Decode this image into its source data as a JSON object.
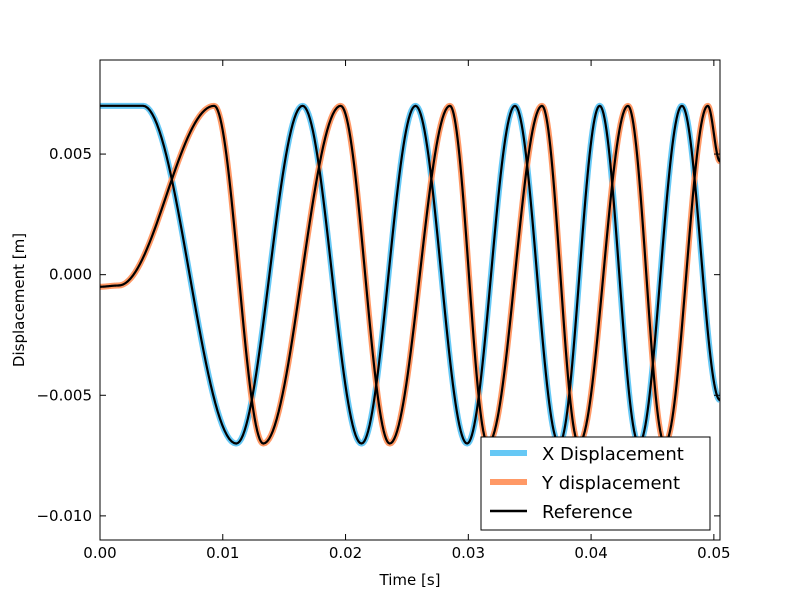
{
  "chart_data": {
    "type": "line",
    "title": "",
    "xlabel": "Time [s]",
    "ylabel": "Displacement [m]",
    "xlim": [
      0.0,
      0.0505
    ],
    "ylim": [
      -0.011,
      0.0089
    ],
    "xticks": [
      0.0,
      0.01,
      0.02,
      0.03,
      0.04,
      0.05
    ],
    "xtick_labels": [
      "0.00",
      "0.01",
      "0.02",
      "0.03",
      "0.04",
      "0.05"
    ],
    "yticks": [
      -0.01,
      -0.005,
      0.0,
      0.005
    ],
    "ytick_labels": [
      "−0.010",
      "−0.005",
      "0.000",
      "0.005"
    ],
    "grid": false,
    "legend_position": "lower-right",
    "colors": {
      "x_displacement": "#66c8f5",
      "y_displacement": "#ff9966",
      "reference": "#000000"
    },
    "series": [
      {
        "name": "X Displacement",
        "amplitude": 0.007,
        "x": [
          0.0,
          0.0035,
          0.0111,
          0.0165,
          0.0213,
          0.0257,
          0.0299,
          0.0338,
          0.0374,
          0.0407,
          0.0439,
          0.0474,
          0.0505
        ],
        "y": [
          0.007,
          0.007,
          -0.007,
          0.007,
          -0.007,
          0.007,
          -0.007,
          0.007,
          -0.007,
          0.007,
          -0.007,
          0.007,
          -0.0052
        ]
      },
      {
        "name": "Y displacement",
        "amplitude": 0.007,
        "x": [
          0.0,
          0.0015,
          0.0093,
          0.0133,
          0.0196,
          0.0236,
          0.0285,
          0.0316,
          0.036,
          0.039,
          0.043,
          0.046,
          0.0495,
          0.0505
        ],
        "y": [
          -0.0005,
          -0.00045,
          0.007,
          -0.007,
          0.007,
          -0.007,
          0.007,
          -0.007,
          0.007,
          -0.007,
          0.007,
          -0.007,
          0.007,
          0.0047
        ]
      },
      {
        "name": "Reference",
        "follows": [
          "X Displacement",
          "Y displacement"
        ]
      }
    ]
  }
}
